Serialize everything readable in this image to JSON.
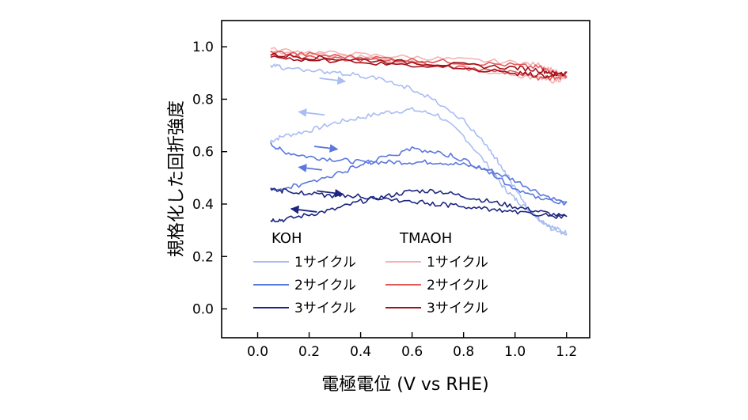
{
  "chart_data": {
    "type": "line",
    "xlabel": "電極電位 (V vs RHE)",
    "ylabel": "規格化した回折強度",
    "xlim": [
      -0.14,
      1.29
    ],
    "ylim": [
      -0.11,
      1.1
    ],
    "xticks": [
      0.0,
      0.2,
      0.4,
      0.6,
      0.8,
      1.0,
      1.2
    ],
    "xtick_labels": [
      "0.0",
      "0.2",
      "0.4",
      "0.6",
      "0.8",
      "1.0",
      "1.2"
    ],
    "yticks": [
      0.0,
      0.2,
      0.4,
      0.6,
      0.8,
      1.0
    ],
    "ytick_labels": [
      "0.0",
      "0.2",
      "0.4",
      "0.6",
      "0.8",
      "1.0"
    ],
    "legend": {
      "groups": [
        {
          "title": "KOH",
          "entries": [
            "1サイクル",
            "2サイクル",
            "3サイクル"
          ]
        },
        {
          "title": "TMAOH",
          "entries": [
            "1サイクル",
            "2サイクル",
            "3サイクル"
          ]
        }
      ]
    },
    "series": [
      {
        "name": "KOH 1サイクル",
        "color": "#a9bdf2",
        "x": [
          0.05,
          0.1,
          0.2,
          0.3,
          0.4,
          0.5,
          0.6,
          0.7,
          0.8,
          0.9,
          0.95,
          1.0,
          1.05,
          1.1,
          1.15,
          1.2,
          1.15,
          1.1,
          1.05,
          1.0,
          0.95,
          0.9,
          0.8,
          0.7,
          0.6,
          0.5,
          0.4,
          0.3,
          0.2,
          0.1,
          0.05
        ],
        "y": [
          0.64,
          0.66,
          0.68,
          0.71,
          0.73,
          0.75,
          0.76,
          0.74,
          0.66,
          0.54,
          0.47,
          0.42,
          0.38,
          0.34,
          0.31,
          0.29,
          0.3,
          0.33,
          0.38,
          0.46,
          0.54,
          0.61,
          0.72,
          0.79,
          0.84,
          0.87,
          0.89,
          0.9,
          0.91,
          0.92,
          0.93
        ],
        "arrows": [
          {
            "x1": 0.26,
            "x2": 0.16,
            "y": 0.74
          },
          {
            "x1": 0.24,
            "x2": 0.34,
            "y": 0.88
          }
        ]
      },
      {
        "name": "KOH 2サイクル",
        "color": "#5b78dd",
        "x": [
          0.05,
          0.1,
          0.2,
          0.3,
          0.4,
          0.5,
          0.6,
          0.7,
          0.8,
          0.9,
          1.0,
          1.1,
          1.2,
          1.1,
          1.0,
          0.9,
          0.8,
          0.7,
          0.6,
          0.5,
          0.4,
          0.3,
          0.2,
          0.1,
          0.05
        ],
        "y": [
          0.63,
          0.6,
          0.58,
          0.57,
          0.56,
          0.56,
          0.56,
          0.56,
          0.55,
          0.53,
          0.49,
          0.44,
          0.4,
          0.42,
          0.46,
          0.52,
          0.57,
          0.6,
          0.61,
          0.58,
          0.55,
          0.51,
          0.48,
          0.46,
          0.46
        ],
        "arrows": [
          {
            "x1": 0.22,
            "x2": 0.31,
            "y": 0.62
          },
          {
            "x1": 0.25,
            "x2": 0.16,
            "y": 0.53
          }
        ]
      },
      {
        "name": "KOH 3サイクル",
        "color": "#1c2580",
        "x": [
          0.05,
          0.1,
          0.2,
          0.3,
          0.4,
          0.5,
          0.6,
          0.7,
          0.8,
          0.9,
          1.0,
          1.1,
          1.2,
          1.1,
          1.0,
          0.9,
          0.8,
          0.7,
          0.6,
          0.5,
          0.4,
          0.3,
          0.2,
          0.1,
          0.05
        ],
        "y": [
          0.34,
          0.34,
          0.36,
          0.38,
          0.41,
          0.43,
          0.45,
          0.45,
          0.43,
          0.41,
          0.39,
          0.37,
          0.35,
          0.36,
          0.37,
          0.38,
          0.39,
          0.4,
          0.41,
          0.42,
          0.43,
          0.43,
          0.44,
          0.45,
          0.46
        ],
        "arrows": [
          {
            "x1": 0.23,
            "x2": 0.33,
            "y": 0.45
          },
          {
            "x1": 0.23,
            "x2": 0.13,
            "y": 0.37
          }
        ]
      },
      {
        "name": "TMAOH 1サイクル",
        "color": "#f4b3b3",
        "x": [
          0.05,
          0.2,
          0.4,
          0.6,
          0.8,
          1.0,
          1.1,
          1.15,
          1.2,
          1.15,
          1.1,
          1.0,
          0.8,
          0.6,
          0.4,
          0.2,
          0.05
        ],
        "y": [
          0.99,
          0.98,
          0.97,
          0.96,
          0.95,
          0.94,
          0.93,
          0.91,
          0.88,
          0.87,
          0.88,
          0.89,
          0.92,
          0.94,
          0.96,
          0.97,
          0.98
        ]
      },
      {
        "name": "TMAOH 2サイクル",
        "color": "#e2595a",
        "x": [
          0.05,
          0.2,
          0.4,
          0.6,
          0.8,
          1.0,
          1.1,
          1.15,
          1.2,
          1.15,
          1.1,
          1.0,
          0.8,
          0.6,
          0.4,
          0.2,
          0.05
        ],
        "y": [
          0.98,
          0.97,
          0.96,
          0.95,
          0.94,
          0.93,
          0.92,
          0.9,
          0.89,
          0.88,
          0.88,
          0.9,
          0.92,
          0.94,
          0.95,
          0.96,
          0.97
        ]
      },
      {
        "name": "TMAOH 3サイクル",
        "color": "#a3101a",
        "x": [
          0.05,
          0.2,
          0.4,
          0.6,
          0.8,
          1.0,
          1.1,
          1.15,
          1.2,
          1.15,
          1.1,
          1.0,
          0.8,
          0.6,
          0.4,
          0.2,
          0.05
        ],
        "y": [
          0.97,
          0.96,
          0.95,
          0.94,
          0.93,
          0.92,
          0.91,
          0.9,
          0.9,
          0.89,
          0.89,
          0.9,
          0.92,
          0.93,
          0.94,
          0.95,
          0.96
        ]
      }
    ]
  }
}
